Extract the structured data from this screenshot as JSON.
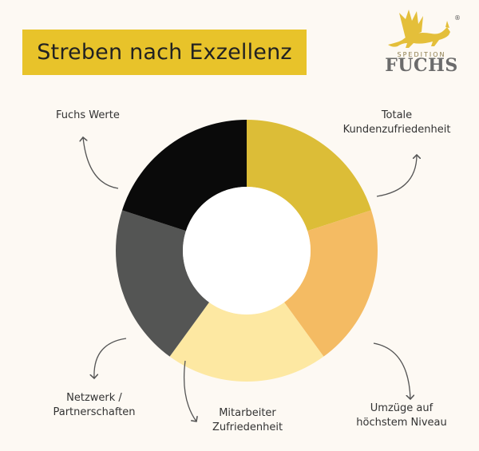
{
  "title": "Streben nach Exzellenz",
  "logo": {
    "small_text": "SPEDITION",
    "brand": "FUCHS",
    "registered": "®"
  },
  "colors": {
    "banner": "#e8c32a",
    "background": "#fdf9f3"
  },
  "segments": [
    {
      "label_line1": "Totale",
      "label_line2": "Kundenzufriedenheit",
      "color": "#dcbd37"
    },
    {
      "label_line1": "Umzüge auf",
      "label_line2": "höchstem Niveau",
      "color": "#f4bb63"
    },
    {
      "label_line1": "Mitarbeiter",
      "label_line2": "Zufriedenheit",
      "color": "#fde8a2"
    },
    {
      "label_line1": "Netzwerk /",
      "label_line2": "Partnerschaften",
      "color": "#545554"
    },
    {
      "label_line1": "Fuchs Werte",
      "label_line2": "",
      "color": "#0a0a0a"
    }
  ]
}
